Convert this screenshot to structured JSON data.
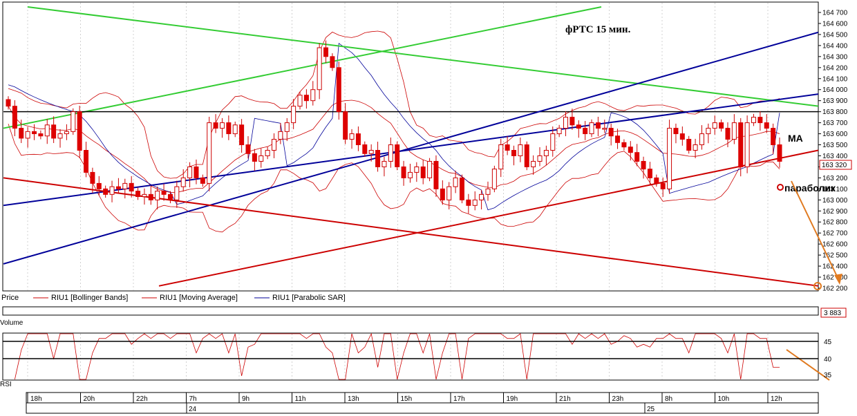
{
  "chart_data": {
    "type": "candlestick",
    "title": "фРТС   15 мин.",
    "price_axis": {
      "ylim": [
        162200,
        164700
      ],
      "tick_step": 100,
      "tick_labels": [
        "162 200",
        "162 300",
        "162 400",
        "162 500",
        "162 600",
        "162 700",
        "162 800",
        "162 900",
        "163 000",
        "163 100",
        "163 200",
        "163 300",
        "163 400",
        "163 500",
        "163 600",
        "163 700",
        "163 800",
        "163 900",
        "164 000",
        "164 100",
        "164 200",
        "164 300",
        "164 400",
        "164 500",
        "164 600",
        "164 700"
      ],
      "last_price_label": "163 320",
      "last_price_color": "#cc0000"
    },
    "time_axis": {
      "hour_labels": [
        "18h",
        "20h",
        "22h",
        "7h",
        "9h",
        "11h",
        "13h",
        "15h",
        "17h",
        "19h",
        "21h",
        "23h",
        "8h",
        "10h",
        "12h"
      ],
      "day_labels": [
        "24",
        "25"
      ]
    },
    "legend": [
      {
        "label": "Price",
        "color": "#000000"
      },
      {
        "label": "RIU1 [Bollinger Bands]",
        "color": "#cc0000"
      },
      {
        "label": "RIU1 [Moving Average]",
        "color": "#cc0000"
      },
      {
        "label": "RIU1 [Parabolic SAR]",
        "color": "#000099"
      }
    ],
    "volume_panel": {
      "label": "Volume",
      "value_label": "3 883",
      "value_color": "#cc0000"
    },
    "rsi_panel": {
      "label": "RSI",
      "levels": [
        45,
        40
      ],
      "tick_labels": [
        "45",
        "40",
        "35"
      ]
    },
    "annotations": {
      "ma": "MA",
      "parabolic": "параболик"
    },
    "closes": [
      163850,
      163650,
      163560,
      163620,
      163600,
      163580,
      163680,
      163560,
      163600,
      163620,
      163800,
      163450,
      163250,
      163150,
      163100,
      163050,
      163120,
      163100,
      163150,
      163080,
      163030,
      163050,
      163000,
      163080,
      163050,
      163000,
      163120,
      163200,
      163300,
      163200,
      163150,
      163700,
      163650,
      163700,
      163600,
      163680,
      163500,
      163420,
      163350,
      163400,
      163450,
      163550,
      163620,
      163700,
      163850,
      163950,
      163900,
      164000,
      164380,
      164300,
      164200,
      163800,
      163550,
      163600,
      163500,
      163420,
      163450,
      163300,
      163350,
      163500,
      163300,
      163200,
      163250,
      163300,
      163200,
      163350,
      163100,
      163000,
      163120,
      163200,
      163000,
      162950,
      163000,
      163050,
      163100,
      163280,
      163500,
      163450,
      163400,
      163500,
      163300,
      163350,
      163400,
      163450,
      163600,
      163650,
      163750,
      163680,
      163650,
      163600,
      163700,
      163650,
      163650,
      163580,
      163520,
      163480,
      163430,
      163350,
      163280,
      163200,
      163150,
      163100,
      163650,
      163600,
      163550,
      163450,
      163500,
      163600,
      163650,
      163700,
      163650,
      163550,
      163700,
      163300,
      163700,
      163750,
      163700,
      163650,
      163500,
      163350
    ]
  }
}
